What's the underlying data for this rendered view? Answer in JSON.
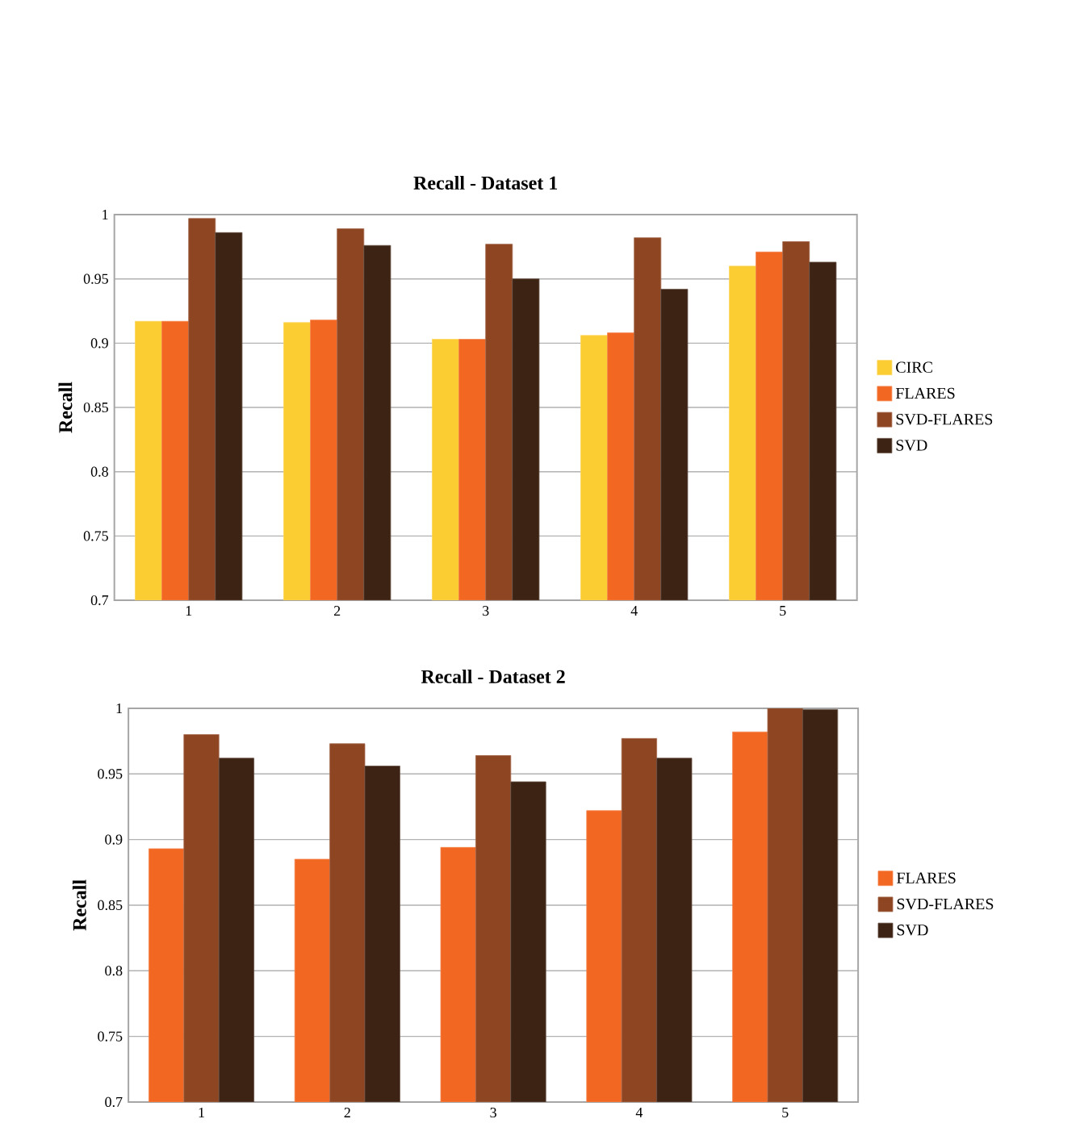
{
  "chart_data": [
    {
      "type": "bar",
      "title": "Recall - Dataset 1",
      "ylabel": "Recall",
      "categories": [
        "1",
        "2",
        "3",
        "4",
        "5"
      ],
      "series": [
        {
          "name": "CIRC",
          "color": "#fccc33",
          "values": [
            0.917,
            0.916,
            0.903,
            0.906,
            0.96
          ]
        },
        {
          "name": "FLARES",
          "color": "#f26722",
          "values": [
            0.917,
            0.918,
            0.903,
            0.908,
            0.971
          ]
        },
        {
          "name": "SVD-FLARES",
          "color": "#8e4522",
          "values": [
            0.997,
            0.989,
            0.977,
            0.982,
            0.979
          ]
        },
        {
          "name": "SVD",
          "color": "#3d2314",
          "values": [
            0.986,
            0.976,
            0.95,
            0.942,
            0.963
          ]
        }
      ],
      "ylim": [
        0.7,
        1
      ],
      "yticks": [
        0.7,
        0.75,
        0.8,
        0.85,
        0.9,
        0.95,
        1
      ],
      "grid": "y",
      "legend": "right"
    },
    {
      "type": "bar",
      "title": "Recall - Dataset 2",
      "ylabel": "Recall",
      "categories": [
        "1",
        "2",
        "3",
        "4",
        "5"
      ],
      "series": [
        {
          "name": "FLARES",
          "color": "#f26722",
          "values": [
            0.893,
            0.885,
            0.894,
            0.922,
            0.982
          ]
        },
        {
          "name": "SVD-FLARES",
          "color": "#8e4522",
          "values": [
            0.98,
            0.973,
            0.964,
            0.977,
            1.0
          ]
        },
        {
          "name": "SVD",
          "color": "#3d2314",
          "values": [
            0.962,
            0.956,
            0.944,
            0.962,
            0.999
          ]
        }
      ],
      "ylim": [
        0.7,
        1
      ],
      "yticks": [
        0.7,
        0.75,
        0.8,
        0.85,
        0.9,
        0.95,
        1
      ],
      "grid": "y",
      "legend": "right"
    }
  ]
}
